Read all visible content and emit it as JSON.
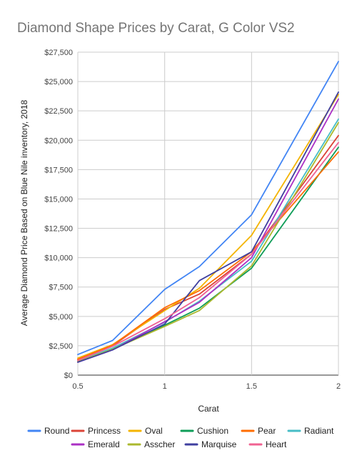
{
  "chart_data": {
    "type": "line",
    "title": "Diamond Shape Prices by Carat, G Color VS2",
    "xlabel": "Carat",
    "ylabel": "Average Diamond Price Based on Blue Nile inventory, 2018",
    "x": [
      0.5,
      0.7,
      1,
      1.2,
      1.5,
      2
    ],
    "xlim": [
      0.5,
      2
    ],
    "ylim": [
      0,
      27500
    ],
    "xticks": [
      0.5,
      1,
      1.5,
      2
    ],
    "xtick_labels": [
      "0.5",
      "1",
      "1.5",
      "2"
    ],
    "yticks": [
      0,
      2500,
      5000,
      7500,
      10000,
      12500,
      15000,
      17500,
      20000,
      22500,
      25000,
      27500
    ],
    "ytick_labels": [
      "$0",
      "$2,500",
      "$5,000",
      "$7,500",
      "$10,000",
      "$12,500",
      "$15,000",
      "$17,500",
      "$20,000",
      "$22,500",
      "$25,000",
      "$27,500"
    ],
    "grid": true,
    "legend_position": "bottom",
    "series": [
      {
        "name": "Round",
        "color": "#4285F4",
        "values": [
          1750,
          2950,
          7300,
          9250,
          13650,
          26700
        ]
      },
      {
        "name": "Princess",
        "color": "#DB4437",
        "values": [
          1300,
          2500,
          5600,
          6900,
          10300,
          20400
        ]
      },
      {
        "name": "Oval",
        "color": "#F4B400",
        "values": [
          1450,
          2600,
          5500,
          7400,
          11900,
          23900
        ]
      },
      {
        "name": "Cushion",
        "color": "#0F9D58",
        "values": [
          1150,
          2250,
          4250,
          5700,
          9100,
          19400
        ]
      },
      {
        "name": "Pear",
        "color": "#FF6D00",
        "values": [
          1350,
          2550,
          5750,
          7200,
          10500,
          19000
        ]
      },
      {
        "name": "Radiant",
        "color": "#46BDC6",
        "values": [
          1200,
          2300,
          4500,
          6300,
          9700,
          21800
        ]
      },
      {
        "name": "Emerald",
        "color": "#AB30C4",
        "values": [
          1100,
          2150,
          4550,
          6200,
          10000,
          23500
        ]
      },
      {
        "name": "Asscher",
        "color": "#ABB82E",
        "values": [
          1150,
          2200,
          4150,
          5500,
          9300,
          21500
        ]
      },
      {
        "name": "Marquise",
        "color": "#3F3F9F",
        "values": [
          1100,
          2150,
          4350,
          8050,
          10500,
          24100
        ]
      },
      {
        "name": "Heart",
        "color": "#F06292",
        "values": [
          1250,
          2450,
          4800,
          6600,
          10300,
          19800
        ]
      }
    ]
  }
}
